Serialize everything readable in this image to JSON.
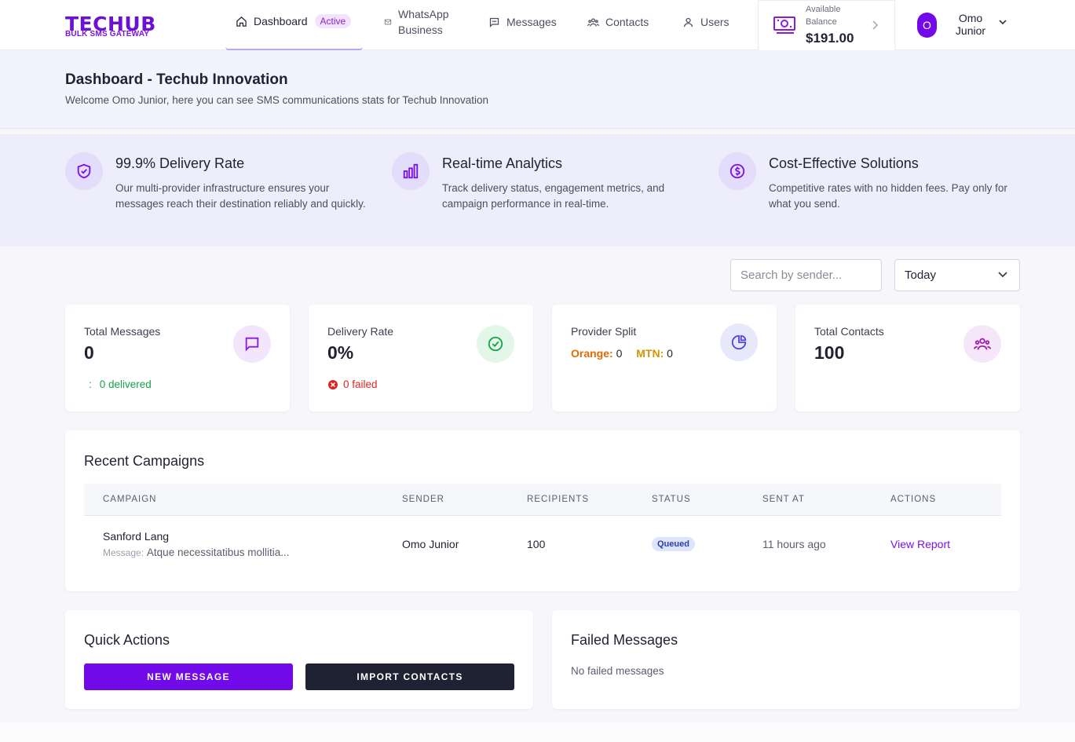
{
  "nav": {
    "logo": "TECHUB",
    "logo_sub": "BULK SMS GATEWAY",
    "items": [
      {
        "label": "Dashboard",
        "icon": "home-icon"
      },
      {
        "label": "WhatsApp\nBusiness",
        "icon": "mail-icon"
      },
      {
        "label": "Messages",
        "icon": "chat-icon"
      },
      {
        "label": "Contacts",
        "icon": "users-group-icon"
      },
      {
        "label": "Users",
        "icon": "user-icon"
      }
    ],
    "active_badge": "Active",
    "balance_label": "Available Balance",
    "balance_amount": "$191.00",
    "user_initial": "O",
    "user_name": "Omo Junior"
  },
  "header": {
    "title": "Dashboard - Techub Innovation",
    "subtitle": "Welcome Omo Junior, here you can see SMS communications stats for Techub Innovation"
  },
  "features": [
    {
      "icon": "shield-check-icon",
      "title": "99.9% Delivery Rate",
      "desc": "Our multi-provider infrastructure ensures your messages reach their destination reliably and quickly."
    },
    {
      "icon": "bar-chart-icon",
      "title": "Real-time Analytics",
      "desc": "Track delivery status, engagement metrics, and campaign performance in real-time."
    },
    {
      "icon": "dollar-circle-icon",
      "title": "Cost-Effective Solutions",
      "desc": "Competitive rates with no hidden fees. Pay only for what you send."
    }
  ],
  "filters": {
    "search_placeholder": "Search by sender...",
    "period": "Today"
  },
  "stats": {
    "total_messages": {
      "label": "Total Messages",
      "value": "0",
      "foot_prefix": ":",
      "foot": "0 delivered"
    },
    "delivery_rate": {
      "label": "Delivery Rate",
      "value": "0%",
      "foot": "0 failed"
    },
    "provider_split": {
      "label": "Provider Split",
      "orange_label": "Orange:",
      "orange_value": "0",
      "mtn_label": "MTN:",
      "mtn_value": "0"
    },
    "total_contacts": {
      "label": "Total Contacts",
      "value": "100"
    }
  },
  "campaigns": {
    "title": "Recent Campaigns",
    "columns": [
      "CAMPAIGN",
      "SENDER",
      "RECIPIENTS",
      "STATUS",
      "SENT AT",
      "ACTIONS"
    ],
    "rows": [
      {
        "campaign": "Sanford Lang",
        "message_label": "Message:",
        "message": "Atque necessitatibus mollitia...",
        "sender": "Omo Junior",
        "recipients": "100",
        "status": "Queued",
        "sent_at": "11 hours ago",
        "action": "View Report"
      }
    ]
  },
  "quick_actions": {
    "title": "Quick Actions",
    "new_message": "NEW MESSAGE",
    "import_contacts": "IMPORT CONTACTS"
  },
  "failed": {
    "title": "Failed Messages",
    "empty": "No failed messages"
  },
  "colors": {
    "brand": "#7209e8",
    "dark_button": "#1f2233",
    "success": "#16a34a",
    "danger": "#dc2626"
  }
}
